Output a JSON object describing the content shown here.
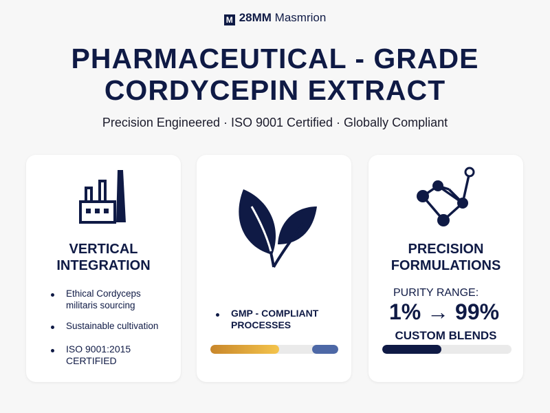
{
  "brand": {
    "logo": "M",
    "name_bold": "28MM",
    "name": "Masmrion"
  },
  "title": [
    "PHARMACEUTICAL - GRADE",
    "CORDYCEPIN EXTRACT"
  ],
  "subtitle": "Precision Engineered · ISO 9001 Certified · Globally Compliant",
  "cards": [
    {
      "icon": "factory-icon",
      "title": [
        "VERTICAL",
        "INTEGRATION"
      ],
      "items": [
        [
          "Ethical Cordyceps",
          "militaris sourcing"
        ],
        [
          "Sustainable cultivation"
        ],
        [
          "ISO 9001:2015",
          "CERTIFIED"
        ]
      ]
    },
    {
      "icon": "leaf-icon",
      "items": [
        [
          "GMP - COMPLIANT",
          "PROCESSES"
        ]
      ],
      "bar_colors": [
        "#c8862a",
        "#f4c44c",
        "#4d68a6"
      ]
    },
    {
      "icon": "molecule-icon",
      "title": [
        "PRECISION",
        "FORMULATIONS"
      ],
      "purity_label": "PURITY RANGE:",
      "purity_range": "1% → 99%",
      "blends": "CUSTOM BLENDS",
      "bar_fill": 0.46,
      "bar_color": "#0f1a45"
    }
  ]
}
